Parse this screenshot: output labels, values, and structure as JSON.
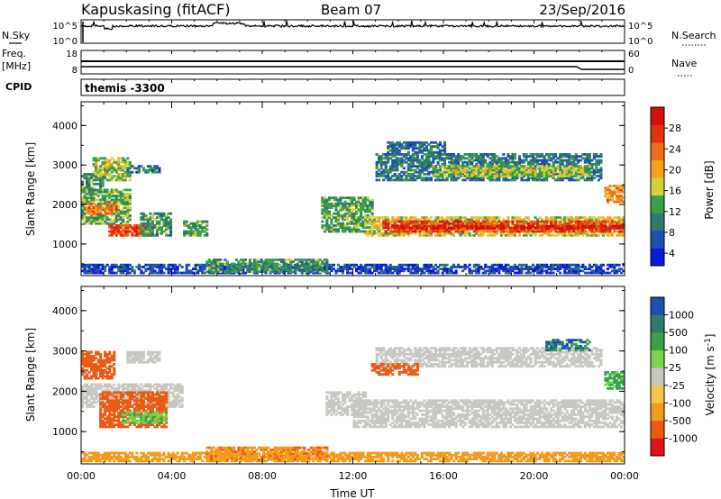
{
  "header": {
    "station": "Kapuskasing (fitACF)",
    "beam": "Beam 07",
    "date": "23/Sep/2016",
    "cpid_name": "themis -3300"
  },
  "top_panels": {
    "nsky_label": "N.Sky",
    "nsky_ticks": [
      "10^5",
      "10^0"
    ],
    "nsearch_label": "N.Search",
    "nsearch_ticks": [
      "10^5",
      "10^0"
    ],
    "freq_label": "Freq.",
    "freq_unit": "[MHz]",
    "freq_ticks": [
      "18",
      "8"
    ],
    "nave_label": "Nave",
    "nave_ticks": [
      "60",
      "0"
    ],
    "cpid_label": "CPID"
  },
  "colors": {
    "power_scale": [
      "#0a1adc",
      "#1f4fb0",
      "#2f7b6b",
      "#3aa04a",
      "#d6cf3c",
      "#f3a21e",
      "#ef6c18",
      "#e03210",
      "#d4100a"
    ],
    "velocity_scale": [
      "#e0141a",
      "#ec5a14",
      "#f39c1c",
      "#f5c64a",
      "#c8c8c2",
      "#7ad44c",
      "#3aa04a",
      "#2f7b6b",
      "#1f4fb0"
    ],
    "velocity_ground": "#c8c8c2"
  },
  "chart_data": [
    {
      "type": "heatmap",
      "name": "power",
      "ylabel": "Slant Range [km]",
      "yticks": [
        "4000",
        "3000",
        "2000",
        "1000"
      ],
      "ylim": [
        200,
        4600
      ],
      "xlim": [
        0,
        24
      ],
      "colorbar_label": "Power [dB]",
      "colorbar_ticks": [
        "28",
        "24",
        "20",
        "16",
        "12",
        "8",
        "4"
      ],
      "colorbar_range": [
        0,
        30
      ],
      "regions": [
        {
          "t0": 0.0,
          "t1": 24.0,
          "r0": 250,
          "r1": 500,
          "v": 4
        },
        {
          "t0": 5.5,
          "t1": 10.8,
          "r0": 280,
          "r1": 600,
          "v": 10
        },
        {
          "t0": 0.0,
          "t1": 0.9,
          "r0": 2300,
          "r1": 2800,
          "v": 10
        },
        {
          "t0": 0.5,
          "t1": 2.2,
          "r0": 2600,
          "r1": 3200,
          "v": 14
        },
        {
          "t0": 2.0,
          "t1": 3.5,
          "r0": 2800,
          "r1": 3000,
          "v": 7
        },
        {
          "t0": 0.0,
          "t1": 2.2,
          "r0": 1500,
          "r1": 2400,
          "v": 12
        },
        {
          "t0": 0.2,
          "t1": 1.6,
          "r0": 1750,
          "r1": 2050,
          "v": 22
        },
        {
          "t0": 1.2,
          "t1": 3.2,
          "r0": 1200,
          "r1": 1500,
          "v": 24
        },
        {
          "t0": 2.6,
          "t1": 4.0,
          "r0": 1200,
          "r1": 1800,
          "v": 10
        },
        {
          "t0": 4.5,
          "t1": 5.5,
          "r0": 1200,
          "r1": 1600,
          "v": 11
        },
        {
          "t0": 10.6,
          "t1": 12.8,
          "r0": 1300,
          "r1": 2200,
          "v": 11
        },
        {
          "t0": 12.5,
          "t1": 24.0,
          "r0": 1200,
          "r1": 1700,
          "v": 16
        },
        {
          "t0": 13.3,
          "t1": 24.0,
          "r0": 1300,
          "r1": 1600,
          "v": 24
        },
        {
          "t0": 13.8,
          "t1": 24.0,
          "r0": 1380,
          "r1": 1480,
          "v": 28
        },
        {
          "t0": 13.0,
          "t1": 23.0,
          "r0": 2600,
          "r1": 3300,
          "v": 8
        },
        {
          "t0": 15.5,
          "t1": 22.5,
          "r0": 2700,
          "r1": 3000,
          "v": 14
        },
        {
          "t0": 13.5,
          "t1": 16.0,
          "r0": 3300,
          "r1": 3600,
          "v": 7
        },
        {
          "t0": 23.1,
          "t1": 24.0,
          "r0": 2050,
          "r1": 2500,
          "v": 20
        }
      ]
    },
    {
      "type": "heatmap",
      "name": "velocity",
      "ylabel": "Slant Range [km]",
      "yticks": [
        "4000",
        "3000",
        "2000",
        "1000"
      ],
      "ylim": [
        200,
        4600
      ],
      "xlim": [
        0,
        24
      ],
      "xticks": [
        "00:00",
        "04:00",
        "08:00",
        "12:00",
        "16:00",
        "20:00",
        "00:00"
      ],
      "xlabel": "Time UT",
      "colorbar_label": "Velocity [m s^-1]",
      "colorbar_ticks": [
        "1000",
        "500",
        "100",
        "25",
        "-25",
        "-100",
        "-500",
        "-1000"
      ],
      "regions": [
        {
          "t0": 0.0,
          "t1": 24.0,
          "r0": 250,
          "r1": 500,
          "v": -60
        },
        {
          "t0": 5.5,
          "t1": 10.8,
          "r0": 280,
          "r1": 600,
          "v": -80
        },
        {
          "t0": 0.0,
          "t1": 4.5,
          "r0": 1600,
          "r1": 2200,
          "g": true
        },
        {
          "t0": 2.0,
          "t1": 3.5,
          "r0": 2700,
          "r1": 3000,
          "g": true
        },
        {
          "t0": 0.0,
          "t1": 1.5,
          "r0": 2300,
          "r1": 3000,
          "v": -300
        },
        {
          "t0": 0.8,
          "t1": 3.8,
          "r0": 1100,
          "r1": 2000,
          "v": -250
        },
        {
          "t0": 1.8,
          "t1": 3.8,
          "r0": 1200,
          "r1": 1500,
          "v": 80
        },
        {
          "t0": 10.8,
          "t1": 12.5,
          "r0": 1400,
          "r1": 2000,
          "g": true
        },
        {
          "t0": 12.0,
          "t1": 24.0,
          "r0": 1100,
          "r1": 1800,
          "g": true
        },
        {
          "t0": 13.0,
          "t1": 23.0,
          "r0": 2600,
          "r1": 3100,
          "g": true
        },
        {
          "t0": 12.8,
          "t1": 14.8,
          "r0": 2400,
          "r1": 2700,
          "v": -300
        },
        {
          "t0": 20.5,
          "t1": 22.5,
          "r0": 3000,
          "r1": 3300,
          "v": 500
        },
        {
          "t0": 23.1,
          "t1": 24.0,
          "r0": 2050,
          "r1": 2500,
          "v": 120
        }
      ]
    }
  ]
}
